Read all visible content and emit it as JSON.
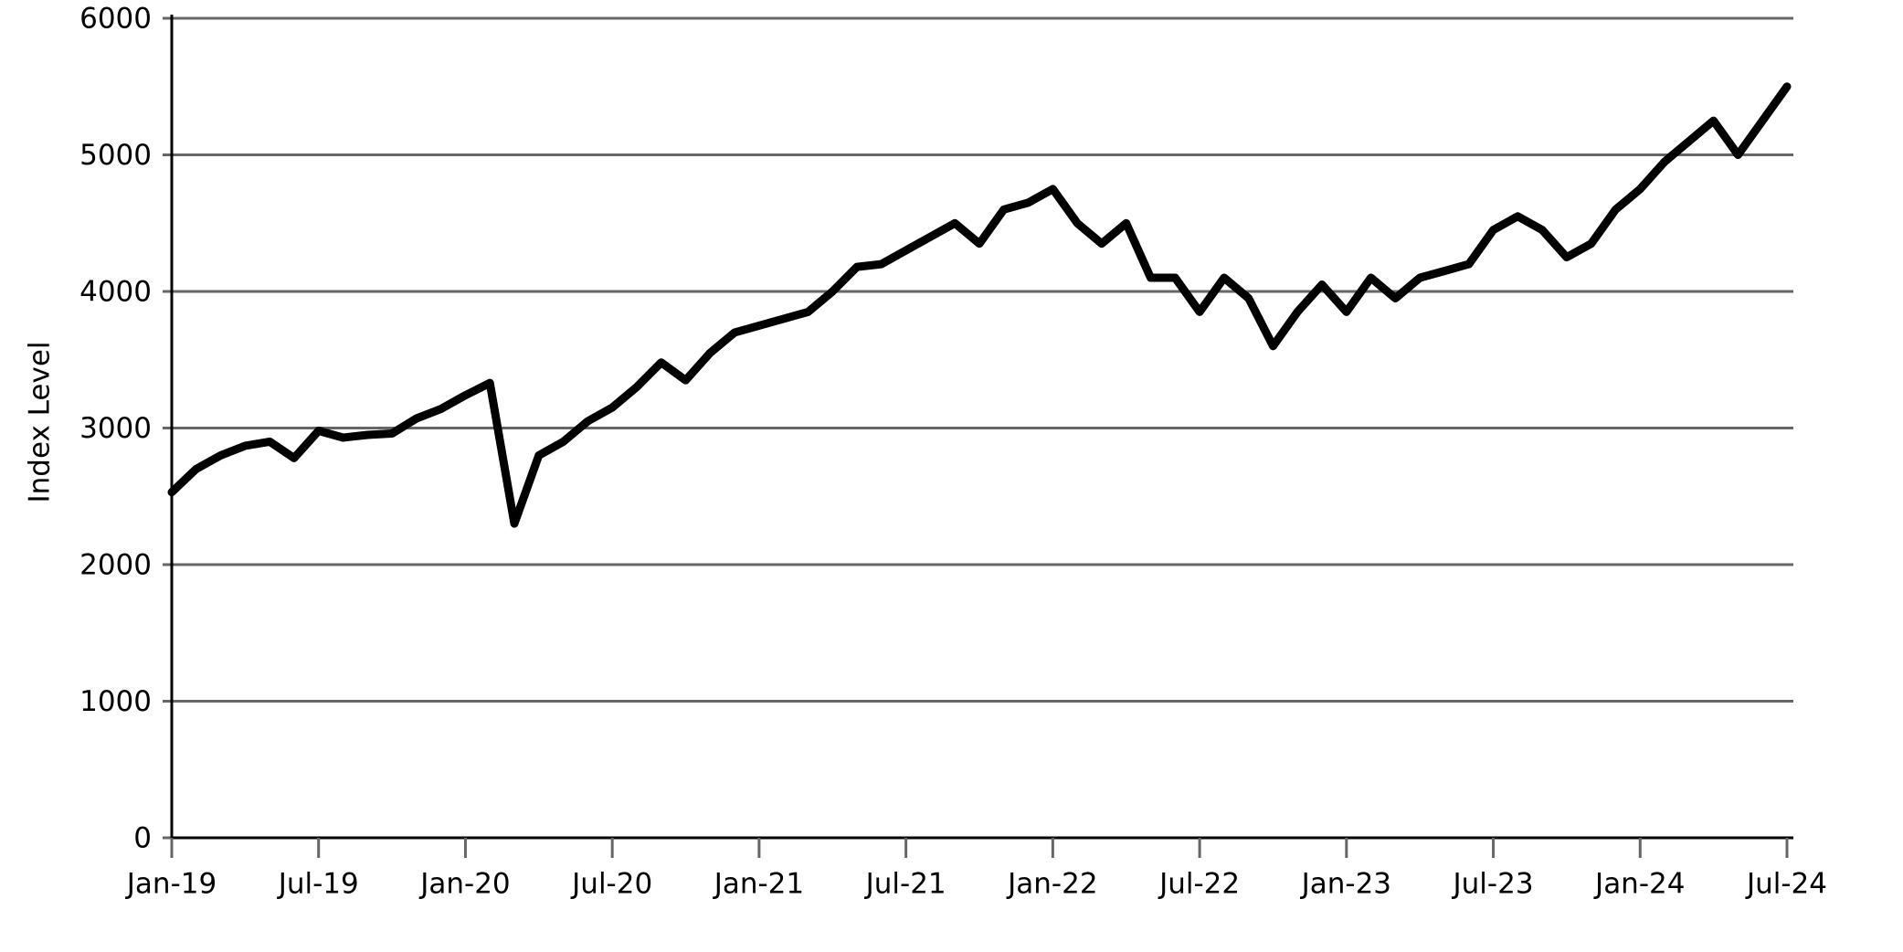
{
  "chart_data": {
    "type": "line",
    "y_label": "Index Level",
    "color": "#000000",
    "grid": true,
    "x": [
      "2019-01",
      "2019-02",
      "2019-03",
      "2019-04",
      "2019-05",
      "2019-06",
      "2019-07",
      "2019-08",
      "2019-09",
      "2019-10",
      "2019-11",
      "2019-12",
      "2020-01",
      "2020-02",
      "2020-03",
      "2020-04",
      "2020-05",
      "2020-06",
      "2020-07",
      "2020-08",
      "2020-09",
      "2020-10",
      "2020-11",
      "2020-12",
      "2021-01",
      "2021-02",
      "2021-03",
      "2021-04",
      "2021-05",
      "2021-06",
      "2021-07",
      "2021-08",
      "2021-09",
      "2021-10",
      "2021-11",
      "2021-12",
      "2022-01",
      "2022-02",
      "2022-03",
      "2022-04",
      "2022-05",
      "2022-06",
      "2022-07",
      "2022-08",
      "2022-09",
      "2022-10",
      "2022-11",
      "2022-12",
      "2023-01",
      "2023-02",
      "2023-03",
      "2023-04",
      "2023-05",
      "2023-06",
      "2023-07",
      "2023-08",
      "2023-09",
      "2023-10",
      "2023-11",
      "2023-12",
      "2024-01",
      "2024-02",
      "2024-03",
      "2024-04",
      "2024-05",
      "2024-06",
      "2024-07"
    ],
    "values": [
      2530,
      2700,
      2800,
      2870,
      2900,
      2780,
      2980,
      2930,
      2950,
      2960,
      3070,
      3140,
      3240,
      3330,
      2300,
      2800,
      2900,
      3050,
      3150,
      3300,
      3480,
      3350,
      3550,
      3700,
      3750,
      3800,
      3850,
      4000,
      4180,
      4200,
      4300,
      4400,
      4500,
      4350,
      4600,
      4650,
      4750,
      4500,
      4350,
      4500,
      4100,
      4100,
      3850,
      4100,
      3950,
      3600,
      3850,
      4050,
      3850,
      4100,
      3950,
      4100,
      4150,
      4200,
      4450,
      4550,
      4450,
      4250,
      4350,
      4600,
      4750,
      4950,
      5100,
      5250,
      5000,
      5250,
      5500
    ],
    "xlim": [
      "2019-01",
      "2024-07"
    ],
    "xticks": [
      {
        "value": "2019-01",
        "label": "Jan-19"
      },
      {
        "value": "2019-07",
        "label": "Jul-19"
      },
      {
        "value": "2020-01",
        "label": "Jan-20"
      },
      {
        "value": "2020-07",
        "label": "Jul-20"
      },
      {
        "value": "2021-01",
        "label": "Jan-21"
      },
      {
        "value": "2021-07",
        "label": "Jul-21"
      },
      {
        "value": "2022-01",
        "label": "Jan-22"
      },
      {
        "value": "2022-07",
        "label": "Jul-22"
      },
      {
        "value": "2023-01",
        "label": "Jan-23"
      },
      {
        "value": "2023-07",
        "label": "Jul-23"
      },
      {
        "value": "2024-01",
        "label": "Jan-24"
      },
      {
        "value": "2024-07",
        "label": "Jul-24"
      }
    ],
    "ylim": [
      0,
      6000
    ],
    "yticks": [
      0,
      1000,
      2000,
      3000,
      4000,
      5000,
      6000
    ]
  }
}
